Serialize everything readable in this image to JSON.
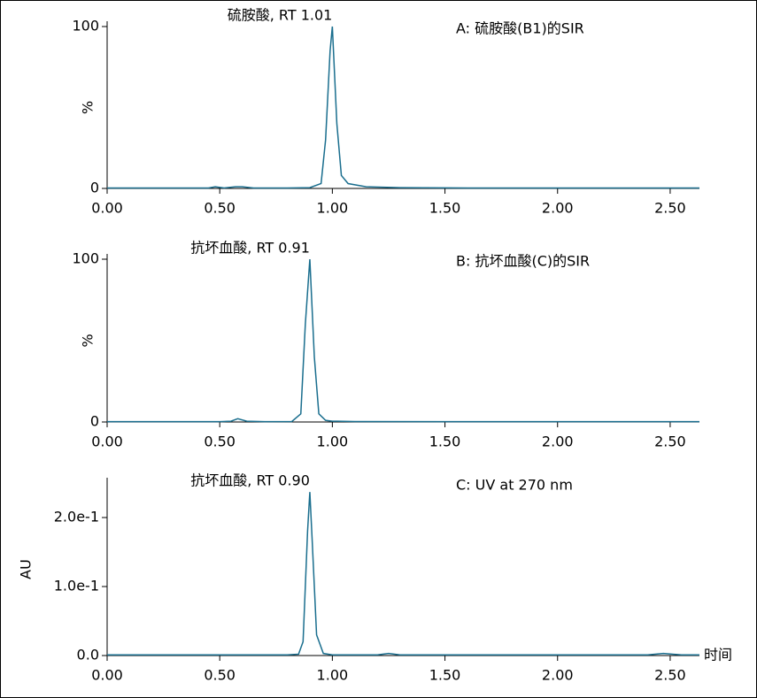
{
  "chart_data": [
    {
      "type": "line",
      "title": "A: 硫胺酸(B1)的SIR",
      "annotation": "硫胺酸, RT 1.01",
      "ylabel": "%",
      "xlim": [
        0,
        2.63
      ],
      "ylim": [
        0,
        100
      ],
      "xticks": [
        {
          "value": 0,
          "label": "0.00"
        },
        {
          "value": 0.5,
          "label": "0.50"
        },
        {
          "value": 1,
          "label": "1.00"
        },
        {
          "value": 1.5,
          "label": "1.50"
        },
        {
          "value": 2,
          "label": "2.00"
        },
        {
          "value": 2.5,
          "label": "2.50"
        }
      ],
      "yticks": [
        0,
        100
      ],
      "x": [
        0,
        0.3,
        0.45,
        0.48,
        0.52,
        0.57,
        0.6,
        0.65,
        0.8,
        0.9,
        0.95,
        0.97,
        0.99,
        1.0,
        1.02,
        1.04,
        1.07,
        1.15,
        1.3,
        1.6,
        2.0,
        2.3,
        2.63
      ],
      "series": [
        {
          "name": "SIR B1",
          "color": "#1a6e8e",
          "values": [
            0.3,
            0.3,
            0.3,
            1,
            0.3,
            1,
            1,
            0.3,
            0.3,
            0.5,
            3,
            30,
            85,
            100,
            40,
            8,
            3,
            1,
            0.5,
            0.3,
            0.3,
            0.3,
            0.3
          ]
        }
      ]
    },
    {
      "type": "line",
      "title": "B: 抗坏血酸(C)的SIR",
      "annotation": "抗坏血酸, RT 0.91",
      "ylabel": "%",
      "xlim": [
        0,
        2.63
      ],
      "ylim": [
        0,
        100
      ],
      "xticks": [
        {
          "value": 0,
          "label": "0.00"
        },
        {
          "value": 0.5,
          "label": "0.50"
        },
        {
          "value": 1,
          "label": "1.00"
        },
        {
          "value": 1.5,
          "label": "1.50"
        },
        {
          "value": 2,
          "label": "2.00"
        },
        {
          "value": 2.5,
          "label": "2.50"
        }
      ],
      "yticks": [
        0,
        100
      ],
      "x": [
        0,
        0.3,
        0.5,
        0.55,
        0.58,
        0.62,
        0.7,
        0.82,
        0.86,
        0.88,
        0.9,
        0.92,
        0.94,
        0.97,
        1.0,
        1.1,
        1.5,
        2.0,
        2.63
      ],
      "series": [
        {
          "name": "SIR C",
          "color": "#1a6e8e",
          "values": [
            0.2,
            0.2,
            0.2,
            0.5,
            2,
            0.5,
            0.2,
            0.3,
            5,
            60,
            100,
            40,
            5,
            1,
            0.5,
            0.3,
            0.2,
            0.2,
            0.2
          ]
        }
      ]
    },
    {
      "type": "line",
      "title": "C: UV at 270 nm",
      "annotation": "抗坏血酸, RT 0.90",
      "ylabel": "AU",
      "xlabel": "时间",
      "xlim": [
        0,
        2.63
      ],
      "ylim": [
        0,
        0.25
      ],
      "xticks": [
        {
          "value": 0,
          "label": "0.00"
        },
        {
          "value": 0.5,
          "label": "0.50"
        },
        {
          "value": 1,
          "label": "1.00"
        },
        {
          "value": 1.5,
          "label": "1.50"
        },
        {
          "value": 2,
          "label": "2.00"
        },
        {
          "value": 2.5,
          "label": "2.50"
        }
      ],
      "yticks": [
        {
          "value": 0,
          "label": "0.0"
        },
        {
          "value": 0.1,
          "label": "1.0e-1"
        },
        {
          "value": 0.2,
          "label": "2.0e-1"
        }
      ],
      "x": [
        0,
        0.5,
        0.8,
        0.85,
        0.87,
        0.89,
        0.9,
        0.91,
        0.93,
        0.96,
        1.0,
        1.2,
        1.25,
        1.3,
        2.0,
        2.4,
        2.47,
        2.55,
        2.63
      ],
      "series": [
        {
          "name": "UV 270",
          "color": "#1a6e8e",
          "values": [
            0.001,
            0.001,
            0.001,
            0.002,
            0.02,
            0.18,
            0.237,
            0.17,
            0.03,
            0.003,
            0.001,
            0.001,
            0.003,
            0.001,
            0.001,
            0.001,
            0.003,
            0.001,
            0.001
          ]
        }
      ]
    }
  ]
}
